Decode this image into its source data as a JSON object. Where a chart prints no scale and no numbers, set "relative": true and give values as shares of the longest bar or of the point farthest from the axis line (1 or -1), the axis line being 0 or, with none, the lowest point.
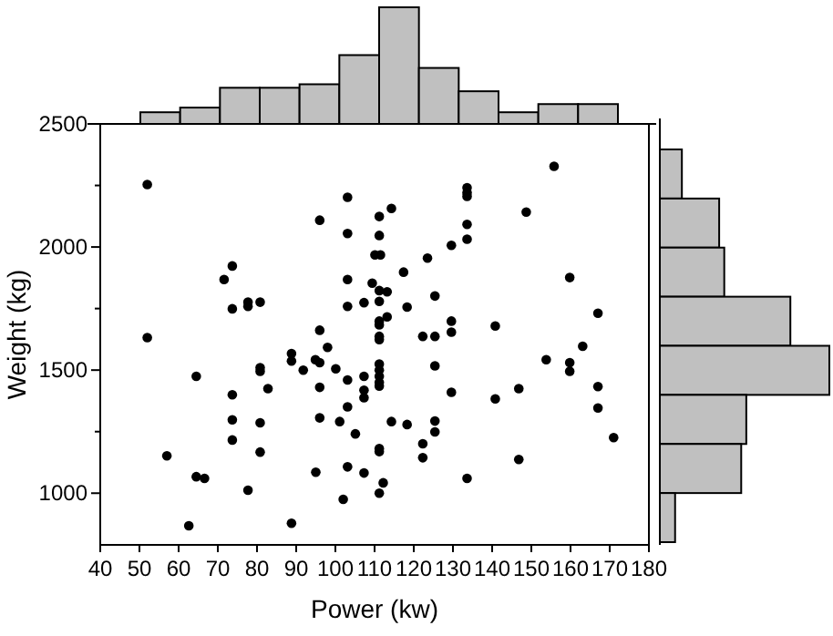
{
  "chart_data": [
    {
      "type": "scatter",
      "xlabel": "Power (kw)",
      "ylabel": "Weight (kg)",
      "marker": "circle",
      "color": "#000000",
      "x": [
        52,
        52,
        57,
        64.5,
        64.5,
        66.6,
        62.6,
        71.6,
        73.7,
        73.7,
        73.7,
        73.7,
        73.7,
        77.7,
        77.7,
        80.8,
        77.7,
        80.8,
        80.8,
        80.8,
        80.8,
        82.8,
        88.8,
        88.8,
        88.8,
        91.8,
        94.9,
        96,
        96,
        96,
        96,
        96,
        95,
        98,
        100.1,
        103.1,
        103.1,
        103.1,
        103.1,
        103.1,
        103.1,
        103.1,
        102,
        101.1,
        105.1,
        107.3,
        107.3,
        107.3,
        107.3,
        107.3,
        111.2,
        111.2,
        110.1,
        111.5,
        111.2,
        111.2,
        111.2,
        111.2,
        111.2,
        111.2,
        111.2,
        111.2,
        111.2,
        111.2,
        111.2,
        111.2,
        111.2,
        111.2,
        113.2,
        113.2,
        114.3,
        114.3,
        112.2,
        117.4,
        118.3,
        118.3,
        109.4,
        122.3,
        122.3,
        122.3,
        125.4,
        125.4,
        125.4,
        125.4,
        125.4,
        123.5,
        129.6,
        129.6,
        129.6,
        129.6,
        133.6,
        133.6,
        133.6,
        133.6,
        133.6,
        133.6,
        140.8,
        140.8,
        146.8,
        146.8,
        148.7,
        153.8,
        155.8,
        159.8,
        159.8,
        159.8,
        163.1,
        167,
        167,
        167,
        171
      ],
      "values": [
        2254,
        1632,
        1152,
        1475,
        1067,
        1060,
        868,
        1868,
        1923,
        1749,
        1400,
        1298,
        1216,
        1776,
        1759,
        1776,
        1012,
        1510,
        1495,
        1286,
        1167,
        1425,
        1567,
        1537,
        878,
        1500,
        1542,
        1530,
        2109,
        1662,
        1430,
        1306,
        1085,
        1592,
        1505,
        2202,
        2055,
        1868,
        1759,
        1460,
        1351,
        1107,
        975,
        1291,
        1241,
        1774,
        1475,
        1418,
        1388,
        1082,
        2124,
        2047,
        1968,
        1968,
        1823,
        1779,
        1699,
        1684,
        1637,
        1624,
        1525,
        1500,
        1475,
        1450,
        1435,
        1181,
        1169,
        1000,
        1818,
        1716,
        2157,
        1291,
        1042,
        1898,
        1756,
        1279,
        1853,
        1637,
        1201,
        1144,
        1637,
        1801,
        1517,
        1293,
        1249,
        1955,
        2007,
        1699,
        1654,
        1410,
        2241,
        2221,
        2206,
        2092,
        2032,
        1060,
        1679,
        1383,
        1425,
        1137,
        2142,
        1542,
        2328,
        1876,
        1530,
        1495,
        1597,
        1731,
        1433,
        1346,
        1226
      ],
      "xlim": [
        40,
        180
      ],
      "xticks": [
        40,
        50,
        60,
        70,
        80,
        90,
        100,
        110,
        120,
        130,
        140,
        150,
        160,
        170,
        180
      ],
      "ylim": [
        790,
        2500
      ],
      "yticks": [
        1000,
        {
          "value": 1250,
          "label": null
        },
        1500,
        {
          "value": 1750,
          "label": null
        },
        2000,
        {
          "value": 2250,
          "label": null
        },
        2500
      ]
    },
    {
      "type": "bar",
      "relative": true,
      "color": "#c0c0c0",
      "categories": [
        null,
        null,
        null,
        null,
        null,
        null,
        null,
        null,
        null,
        null,
        null,
        null
      ],
      "values": [
        0.1,
        0.14,
        0.31,
        0.31,
        0.34,
        0.59,
        1,
        0.48,
        0.28,
        0.1,
        0.17,
        0.17
      ]
    },
    {
      "type": "bar",
      "orientation": "horizontal",
      "relative": true,
      "color": "#c0c0c0",
      "categories": [
        null,
        null,
        null,
        null,
        null,
        null,
        null,
        null
      ],
      "values": [
        0.13,
        0.35,
        0.38,
        0.77,
        1,
        0.51,
        0.48,
        0.09
      ]
    }
  ]
}
